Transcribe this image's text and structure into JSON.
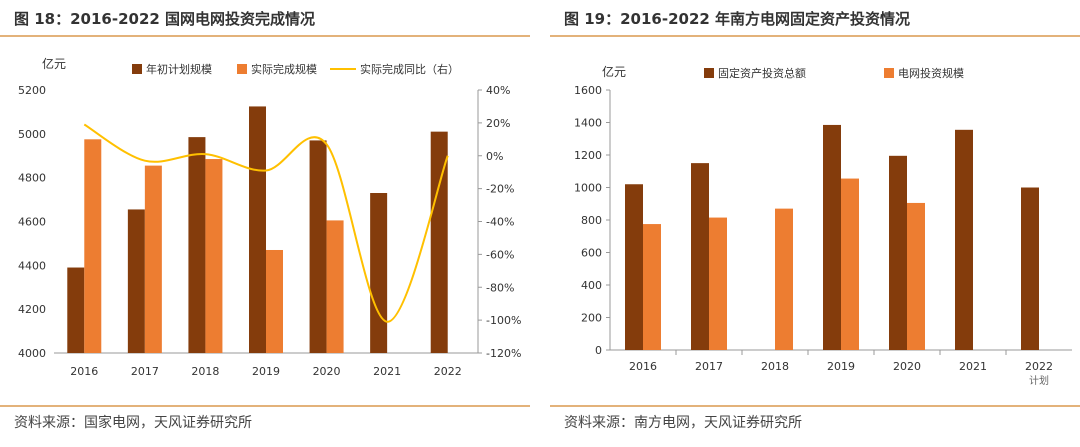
{
  "chart_data": [
    {
      "figure_label": "图 18：",
      "title": "2016-2022 国网电网投资完成情况",
      "source": "资料来源：国家电网，天风证券研究所",
      "type": "bar",
      "y_unit": "亿元",
      "categories": [
        "2016",
        "2017",
        "2018",
        "2019",
        "2020",
        "2021",
        "2022"
      ],
      "ylim": [
        4000,
        5200
      ],
      "yticks": [
        "4000",
        "4200",
        "4400",
        "4600",
        "4800",
        "5000",
        "5200"
      ],
      "ylim_right": [
        -120,
        40
      ],
      "yticks_right": [
        "-120%",
        "-100%",
        "-80%",
        "-60%",
        "-40%",
        "-20%",
        "0%",
        "20%",
        "40%"
      ],
      "series": [
        {
          "name": "年初计划规模",
          "type": "bar",
          "color": "#843C0C",
          "axis": "left",
          "values": [
            4390,
            4655,
            4985,
            5125,
            4970,
            4730,
            5010
          ]
        },
        {
          "name": "实际完成规模",
          "type": "bar",
          "color": "#ED7D31",
          "axis": "left",
          "values": [
            4975,
            4855,
            4885,
            4470,
            4605,
            null,
            null
          ]
        },
        {
          "name": "实际完成同比（右）",
          "type": "line",
          "color": "#FFC000",
          "axis": "right",
          "values": [
            19,
            -3,
            1,
            -9,
            7,
            -101,
            0
          ]
        }
      ]
    },
    {
      "figure_label": "图 19：",
      "title": "2016-2022 年南方电网固定资产投资情况",
      "source": "资料来源：南方电网，天风证券研究所",
      "type": "bar",
      "y_unit": "亿元",
      "categories": [
        "2016",
        "2017",
        "2018",
        "2019",
        "2020",
        "2021",
        "2022"
      ],
      "category_notes": [
        "",
        "",
        "",
        "",
        "",
        "",
        "计划"
      ],
      "ylim": [
        0,
        1600
      ],
      "yticks": [
        "0",
        "200",
        "400",
        "600",
        "800",
        "1000",
        "1200",
        "1400",
        "1600"
      ],
      "series": [
        {
          "name": "固定资产投资总额",
          "type": "bar",
          "color": "#843C0C",
          "values": [
            1020,
            1150,
            null,
            1385,
            1195,
            1355,
            1000
          ]
        },
        {
          "name": "电网投资规模",
          "type": "bar",
          "color": "#ED7D31",
          "values": [
            775,
            815,
            870,
            1055,
            905,
            null,
            null
          ]
        }
      ]
    }
  ]
}
